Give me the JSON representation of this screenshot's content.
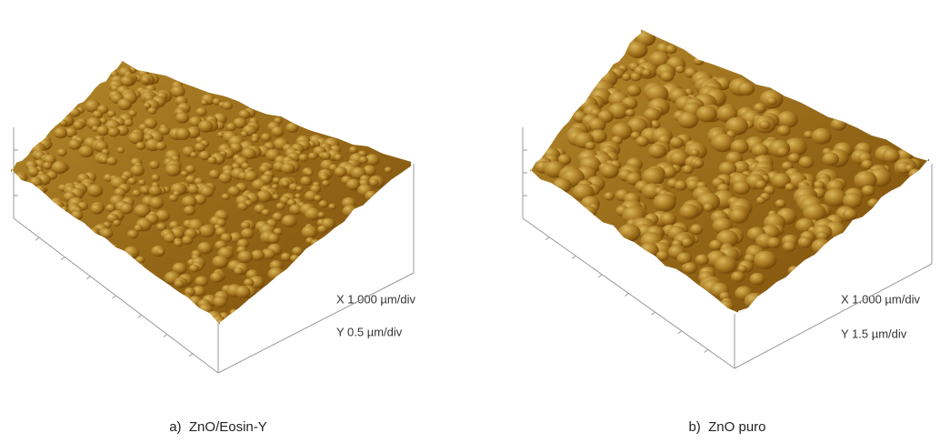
{
  "panels": [
    {
      "caption": "a)  ZnO/Eosin-Y",
      "x_scale": "X 1.000 µm/div",
      "y_scale": "Y 0.5 µm/div"
    },
    {
      "caption": "b)  ZnO puro",
      "x_scale": "X 1.000 µm/div",
      "y_scale": "Y 1.5 µm/div"
    }
  ]
}
